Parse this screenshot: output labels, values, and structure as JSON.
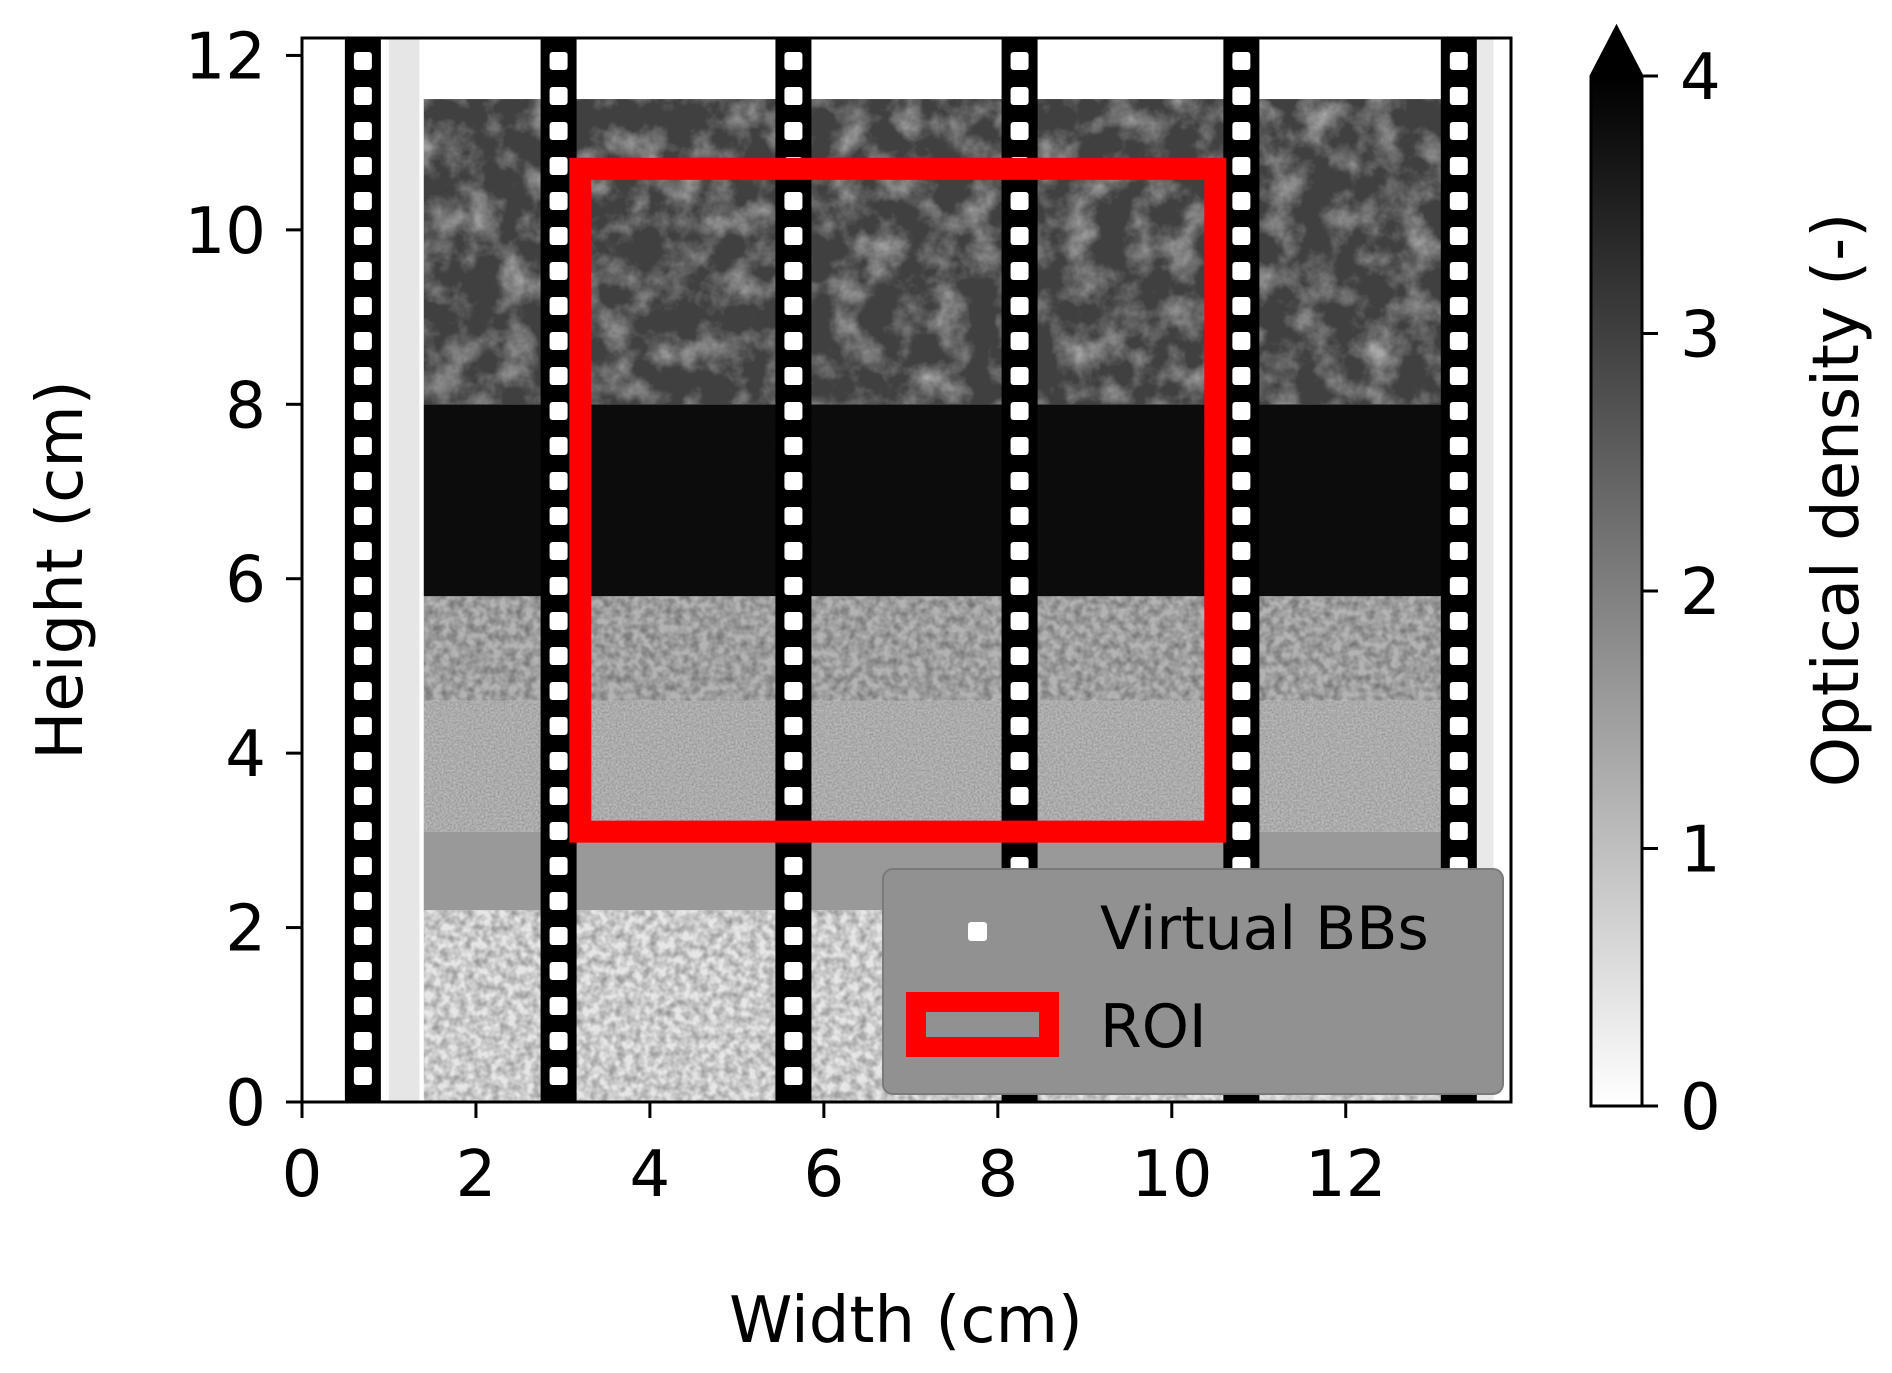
{
  "chart_data": {
    "type": "heatmap",
    "title": "",
    "xlabel": "Width (cm)",
    "ylabel": "Height (cm)",
    "xlim": [
      0,
      13.9
    ],
    "ylim": [
      0,
      12.2
    ],
    "xticks": [
      0,
      2,
      4,
      6,
      8,
      10,
      12
    ],
    "yticks": [
      0,
      2,
      4,
      6,
      8,
      10,
      12
    ],
    "colorbar": {
      "label": "Optical density (-)",
      "range": [
        0,
        4
      ],
      "ticks": [
        0,
        1,
        2,
        3,
        4
      ],
      "colormap": "grayscale, white at 0 to black at 4",
      "extend": "max"
    },
    "image_layers": [
      {
        "y_range": [
          0,
          2.2
        ],
        "optical_density": 0.4,
        "texture": "coarse grains"
      },
      {
        "y_range": [
          2.2,
          3.1
        ],
        "optical_density": 1.6,
        "texture": "uniform band"
      },
      {
        "y_range": [
          3.1,
          4.6
        ],
        "optical_density": 1.1,
        "texture": "fine sand"
      },
      {
        "y_range": [
          4.6,
          5.8
        ],
        "optical_density": 1.2,
        "texture": "coarse grains"
      },
      {
        "y_range": [
          5.8,
          8.0
        ],
        "optical_density": 3.8,
        "texture": "dense dark"
      },
      {
        "y_range": [
          8.0,
          11.5
        ],
        "optical_density": 3.0,
        "texture": "mottled dark"
      }
    ],
    "virtual_bb_columns_x": [
      0.7,
      2.95,
      5.65,
      8.25,
      10.8,
      13.3
    ],
    "roi": {
      "x": [
        3.2,
        10.5
      ],
      "y": [
        3.1,
        10.7
      ]
    },
    "legend": {
      "placement": "lower right",
      "entries": [
        {
          "label": "Virtual BBs",
          "marker": "white square",
          "color": "#ffffff"
        },
        {
          "label": "ROI",
          "marker": "red rectangle outline",
          "color": "#ff0000"
        }
      ]
    }
  },
  "colors": {
    "roi": "#ff0000",
    "bb_column": "#000000",
    "bb_marker": "#ffffff",
    "legend_bg": "#919191"
  }
}
